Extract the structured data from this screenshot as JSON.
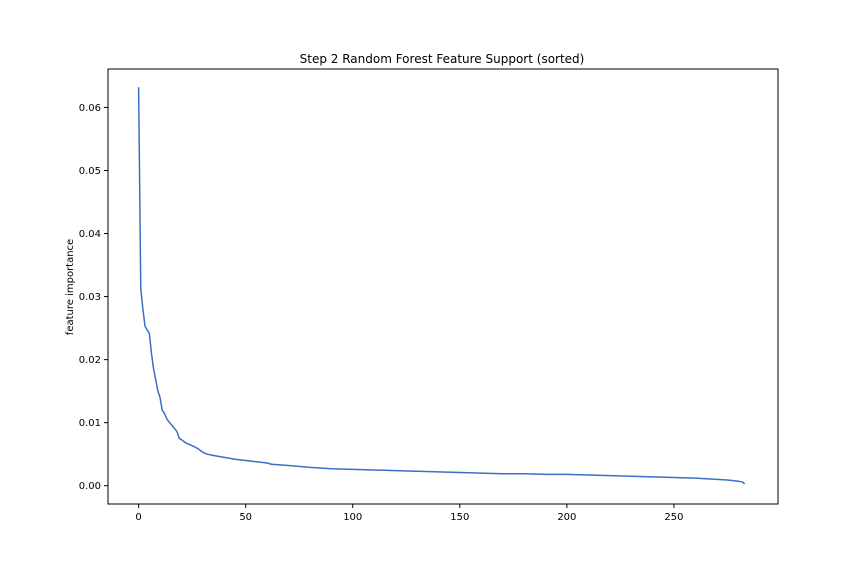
{
  "chart_data": {
    "type": "line",
    "title": "Step 2 Random Forest Feature Support (sorted)",
    "xlabel": "",
    "ylabel": "feature importance",
    "xlim": [
      -14.3,
      298.6
    ],
    "ylim": [
      -0.0029,
      0.0661
    ],
    "xticks": [
      0,
      50,
      100,
      150,
      200,
      250
    ],
    "yticks": [
      0.0,
      0.01,
      0.02,
      0.03,
      0.04,
      0.05,
      0.06
    ],
    "ytick_labels": [
      "0.00",
      "0.01",
      "0.02",
      "0.03",
      "0.04",
      "0.05",
      "0.06"
    ],
    "grid": false,
    "series": [
      {
        "color": "#3a6fc4",
        "x": [
          0,
          1,
          2,
          3,
          4,
          5,
          6,
          7,
          8,
          9,
          10,
          11,
          12,
          13,
          14,
          15,
          16,
          17,
          18,
          19,
          20,
          22,
          24,
          26,
          28,
          30,
          32,
          35,
          40,
          45,
          50,
          55,
          60,
          62,
          70,
          80,
          90,
          100,
          110,
          120,
          130,
          140,
          150,
          160,
          170,
          180,
          190,
          200,
          210,
          220,
          230,
          240,
          250,
          260,
          270,
          275,
          280,
          282,
          283
        ],
        "y": [
          0.0632,
          0.0313,
          0.028,
          0.0253,
          0.0247,
          0.0242,
          0.021,
          0.0185,
          0.0168,
          0.015,
          0.014,
          0.012,
          0.0115,
          0.0107,
          0.0102,
          0.0098,
          0.0094,
          0.009,
          0.0085,
          0.0075,
          0.0073,
          0.0068,
          0.0065,
          0.0062,
          0.0058,
          0.0053,
          0.005,
          0.0048,
          0.0045,
          0.0042,
          0.004,
          0.0038,
          0.0036,
          0.0034,
          0.0032,
          0.0029,
          0.0027,
          0.0026,
          0.0025,
          0.0024,
          0.0023,
          0.0022,
          0.0021,
          0.002,
          0.0019,
          0.0019,
          0.0018,
          0.0018,
          0.0017,
          0.0016,
          0.0015,
          0.0014,
          0.0013,
          0.0012,
          0.001,
          0.0009,
          0.0007,
          0.0006,
          0.0003
        ]
      }
    ]
  }
}
